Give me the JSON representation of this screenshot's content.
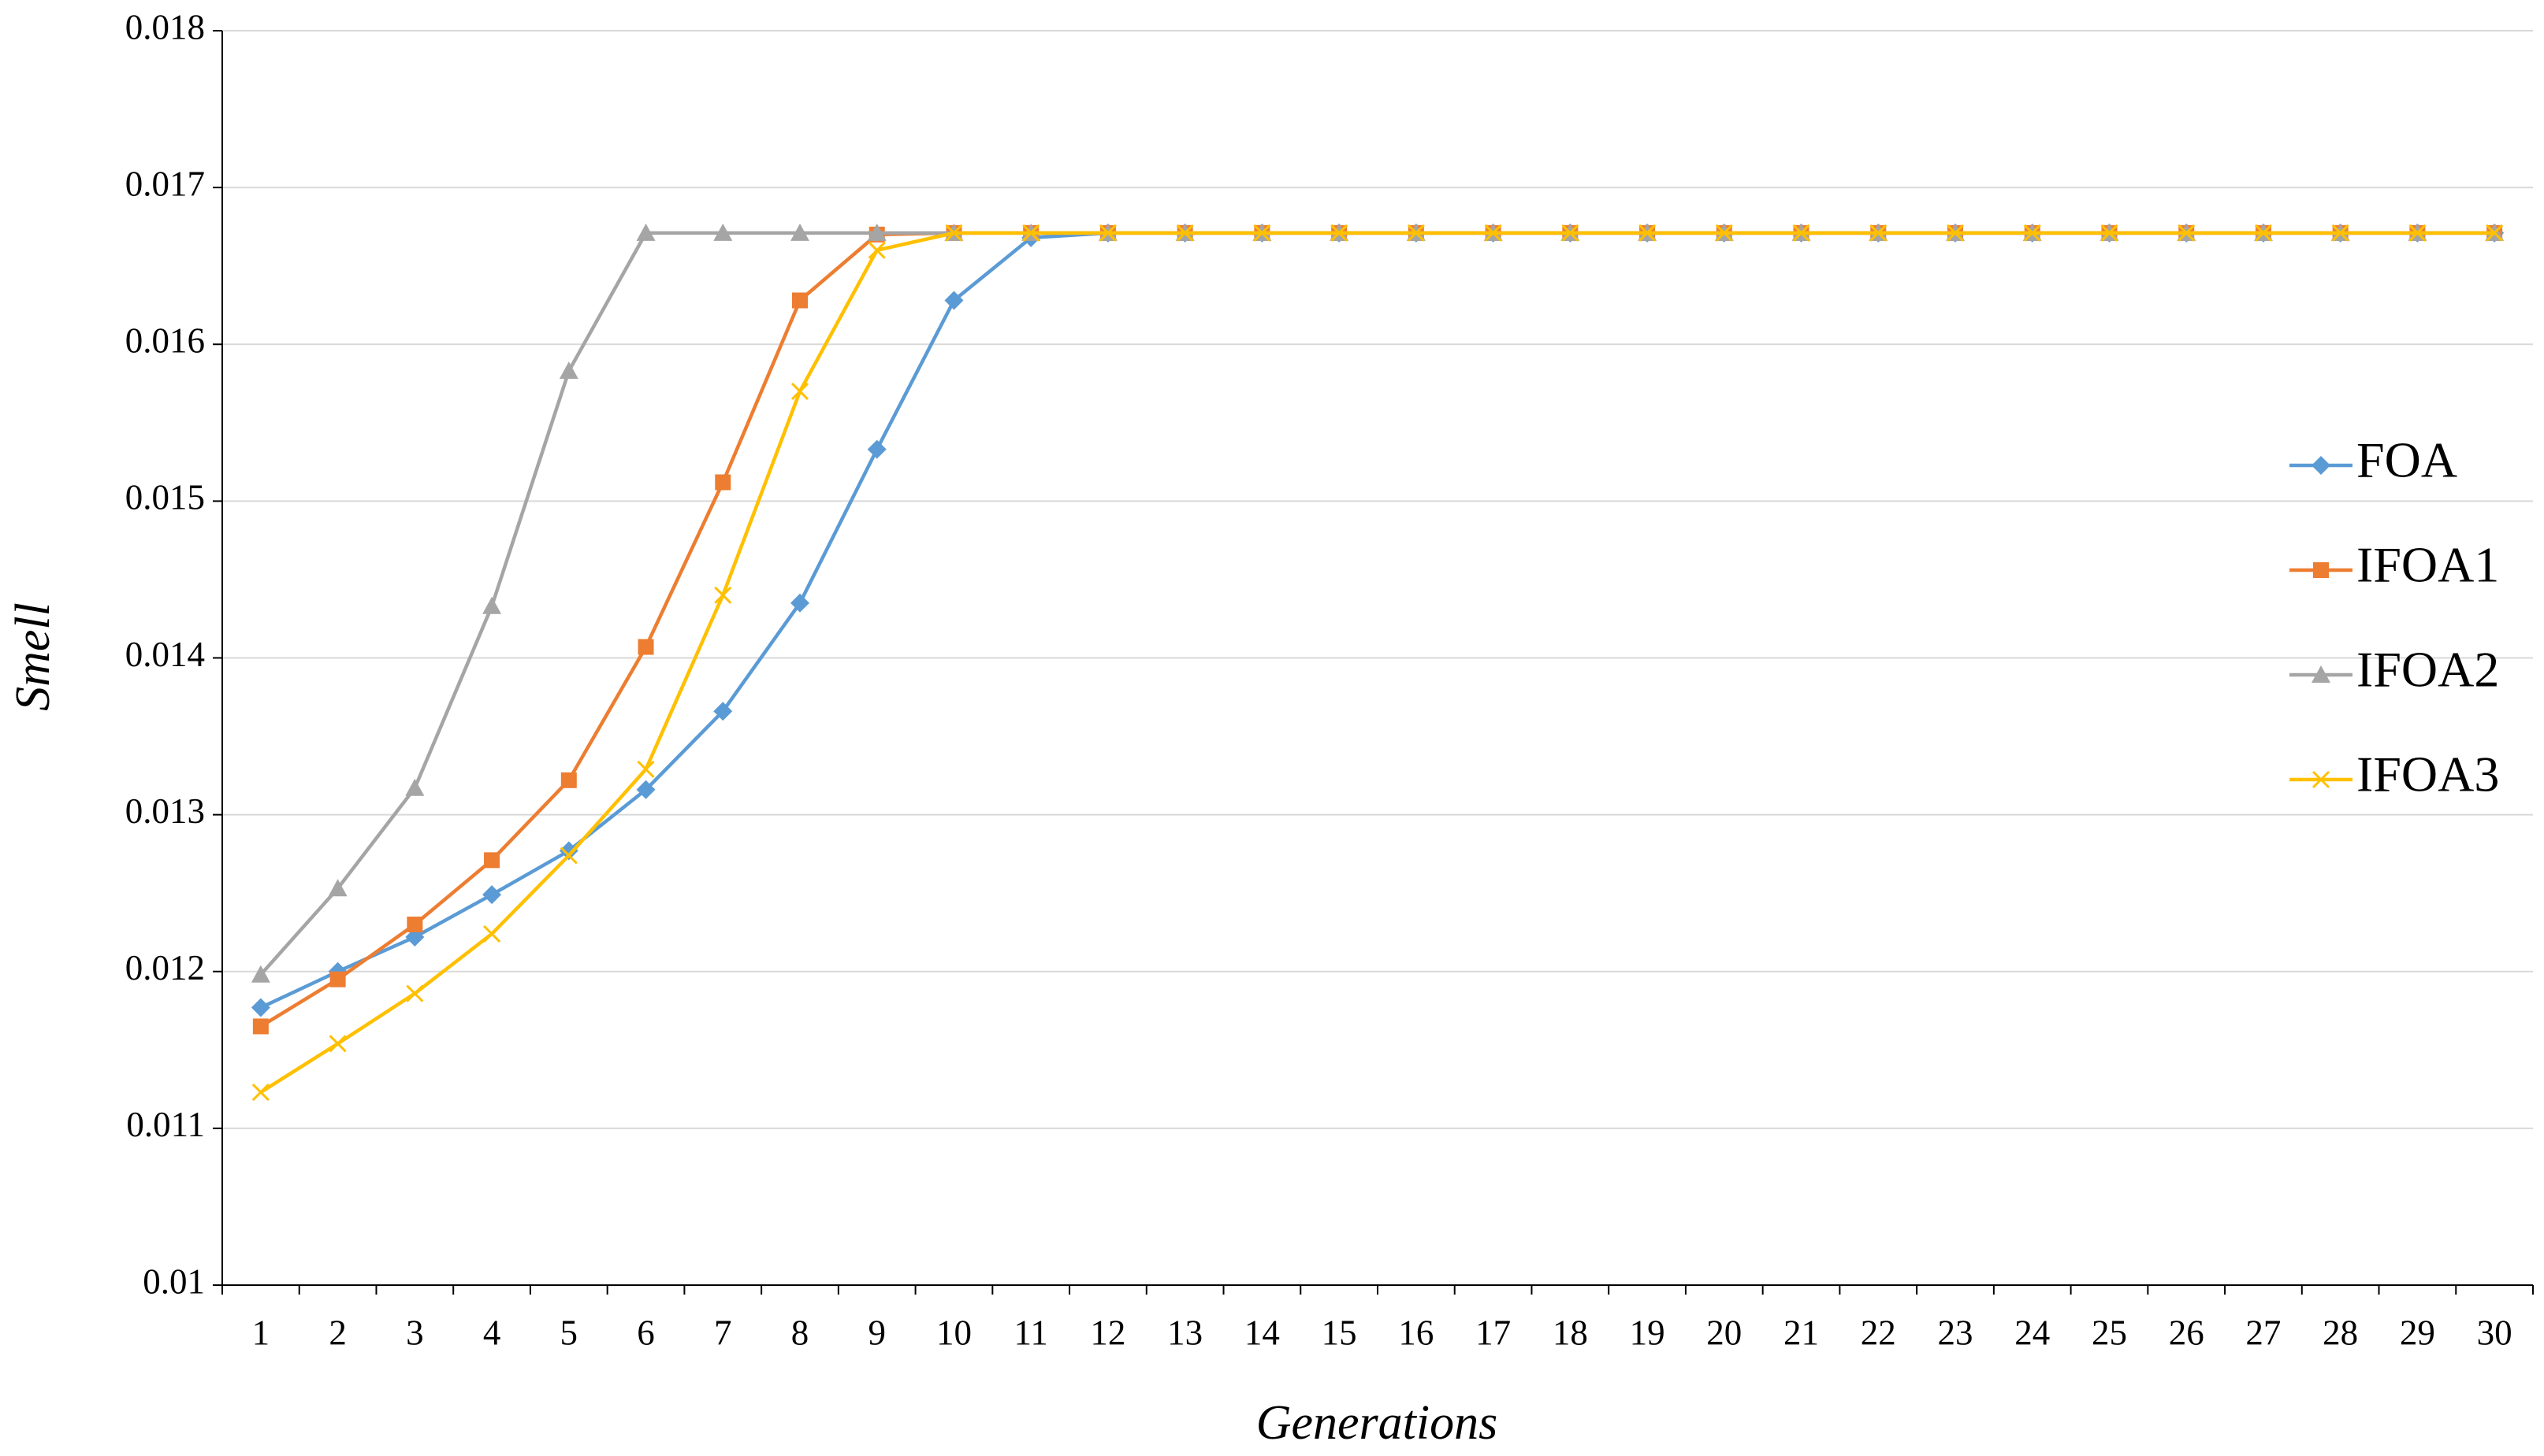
{
  "chart_data": {
    "type": "line",
    "xlabel": "Generations",
    "ylabel": "Smell",
    "categories": [
      "1",
      "2",
      "3",
      "4",
      "5",
      "6",
      "7",
      "8",
      "9",
      "10",
      "11",
      "12",
      "13",
      "14",
      "15",
      "16",
      "17",
      "18",
      "19",
      "20",
      "21",
      "22",
      "23",
      "24",
      "25",
      "26",
      "27",
      "28",
      "29",
      "30"
    ],
    "ylim": [
      0.01,
      0.018
    ],
    "yticks": [
      0.01,
      0.011,
      0.012,
      0.013,
      0.014,
      0.015,
      0.016,
      0.017,
      0.018
    ],
    "grid": true,
    "legend": "right",
    "series": [
      {
        "name": "FOA",
        "color": "#5b9bd5",
        "marker": "diamond",
        "values": [
          0.01177,
          0.012,
          0.01222,
          0.01249,
          0.01277,
          0.01316,
          0.01366,
          0.01435,
          0.01533,
          0.01628,
          0.01668,
          0.01671,
          0.01671,
          0.01671,
          0.01671,
          0.01671,
          0.01671,
          0.01671,
          0.01671,
          0.01671,
          0.01671,
          0.01671,
          0.01671,
          0.01671,
          0.01671,
          0.01671,
          0.01671,
          0.01671,
          0.01671,
          0.01671
        ]
      },
      {
        "name": "IFOA1",
        "color": "#ed7d31",
        "marker": "square",
        "values": [
          0.01165,
          0.01195,
          0.0123,
          0.01271,
          0.01322,
          0.01407,
          0.01512,
          0.01628,
          0.0167,
          0.01671,
          0.01671,
          0.01671,
          0.01671,
          0.01671,
          0.01671,
          0.01671,
          0.01671,
          0.01671,
          0.01671,
          0.01671,
          0.01671,
          0.01671,
          0.01671,
          0.01671,
          0.01671,
          0.01671,
          0.01671,
          0.01671,
          0.01671,
          0.01671
        ]
      },
      {
        "name": "IFOA2",
        "color": "#a5a5a5",
        "marker": "triangle",
        "values": [
          0.01198,
          0.01253,
          0.01317,
          0.01433,
          0.01583,
          0.01671,
          0.01671,
          0.01671,
          0.01671,
          0.01671,
          0.01671,
          0.01671,
          0.01671,
          0.01671,
          0.01671,
          0.01671,
          0.01671,
          0.01671,
          0.01671,
          0.01671,
          0.01671,
          0.01671,
          0.01671,
          0.01671,
          0.01671,
          0.01671,
          0.01671,
          0.01671,
          0.01671,
          0.01671
        ]
      },
      {
        "name": "IFOA3",
        "color": "#ffc000",
        "marker": "x",
        "values": [
          0.01123,
          0.01154,
          0.01186,
          0.01224,
          0.01274,
          0.01329,
          0.0144,
          0.0157,
          0.0166,
          0.01671,
          0.01671,
          0.01671,
          0.01671,
          0.01671,
          0.01671,
          0.01671,
          0.01671,
          0.01671,
          0.01671,
          0.01671,
          0.01671,
          0.01671,
          0.01671,
          0.01671,
          0.01671,
          0.01671,
          0.01671,
          0.01671,
          0.01671,
          0.01671
        ]
      }
    ]
  }
}
